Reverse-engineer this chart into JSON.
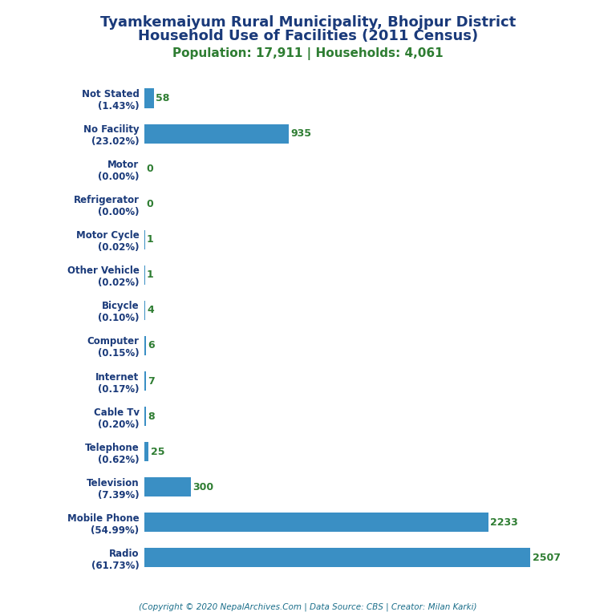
{
  "title_line1": "Tyamkemaiyum Rural Municipality, Bhojpur District",
  "title_line2": "Household Use of Facilities (2011 Census)",
  "subtitle": "Population: 17,911 | Households: 4,061",
  "footer": "(Copyright © 2020 NepalArchives.Com | Data Source: CBS | Creator: Milan Karki)",
  "categories": [
    "Not Stated\n(1.43%)",
    "No Facility\n(23.02%)",
    "Motor\n(0.00%)",
    "Refrigerator\n(0.00%)",
    "Motor Cycle\n(0.02%)",
    "Other Vehicle\n(0.02%)",
    "Bicycle\n(0.10%)",
    "Computer\n(0.15%)",
    "Internet\n(0.17%)",
    "Cable Tv\n(0.20%)",
    "Telephone\n(0.62%)",
    "Television\n(7.39%)",
    "Mobile Phone\n(54.99%)",
    "Radio\n(61.73%)"
  ],
  "values": [
    58,
    935,
    0,
    0,
    1,
    1,
    4,
    6,
    7,
    8,
    25,
    300,
    2233,
    2507
  ],
  "bar_color": "#3a8fc4",
  "title_color": "#1a3a7a",
  "subtitle_color": "#2e7d32",
  "footer_color": "#1a6e8a",
  "value_color": "#2e7d32",
  "ylabel_color": "#1a3a7a",
  "background_color": "#ffffff",
  "bar_height": 0.55
}
